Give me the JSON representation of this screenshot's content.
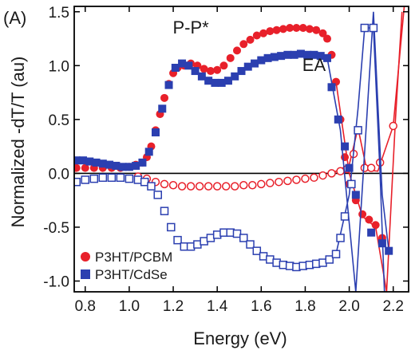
{
  "chart_data": {
    "type": "scatter",
    "panel_label": "(A)",
    "title": "",
    "xlabel": "Energy (eV)",
    "ylabel": "Normalized -dT/T (au)",
    "xlim": [
      0.75,
      2.27
    ],
    "ylim": [
      -1.1,
      1.55
    ],
    "xticks": [
      0.8,
      1.0,
      1.2,
      1.4,
      1.6,
      1.8,
      2.0,
      2.2
    ],
    "xtick_labels": [
      "0.8",
      "1.0",
      "1.2",
      "1.4",
      "1.6",
      "1.8",
      "2.0",
      "2.2"
    ],
    "yticks": [
      -1.0,
      -0.5,
      0.0,
      0.5,
      1.0,
      1.5
    ],
    "ytick_labels": [
      "-1.0",
      "-0.5",
      "0.0",
      "0.5",
      "1.0",
      "1.5"
    ],
    "zero_line": true,
    "grid": false,
    "legend_position": "bottom-left",
    "annotations": [
      {
        "text": "P-P*",
        "x": 1.28,
        "y": 1.3
      },
      {
        "text": "EA",
        "x": 1.84,
        "y": 0.95
      }
    ],
    "colors": {
      "red": "#e8202a",
      "blue": "#2b3fb0"
    },
    "series": [
      {
        "name": "P3HT/PCBM",
        "color": "#e8202a",
        "marker": "circle",
        "filled": true,
        "points": [
          [
            0.76,
            0.05
          ],
          [
            0.8,
            0.05
          ],
          [
            0.84,
            0.05
          ],
          [
            0.88,
            0.05
          ],
          [
            0.92,
            0.05
          ],
          [
            0.96,
            0.05
          ],
          [
            1.0,
            0.06
          ],
          [
            1.03,
            0.08
          ],
          [
            1.06,
            0.1
          ],
          [
            1.08,
            0.15
          ],
          [
            1.1,
            0.25
          ],
          [
            1.12,
            0.4
          ],
          [
            1.14,
            0.55
          ],
          [
            1.16,
            0.7
          ],
          [
            1.18,
            0.83
          ],
          [
            1.2,
            0.93
          ],
          [
            1.22,
            0.98
          ],
          [
            1.25,
            1.0
          ],
          [
            1.28,
            1.02
          ],
          [
            1.31,
            1.0
          ],
          [
            1.34,
            0.97
          ],
          [
            1.37,
            0.95
          ],
          [
            1.4,
            0.96
          ],
          [
            1.43,
            1.0
          ],
          [
            1.46,
            1.07
          ],
          [
            1.49,
            1.14
          ],
          [
            1.52,
            1.2
          ],
          [
            1.55,
            1.24
          ],
          [
            1.58,
            1.28
          ],
          [
            1.61,
            1.3
          ],
          [
            1.64,
            1.32
          ],
          [
            1.67,
            1.33
          ],
          [
            1.7,
            1.34
          ],
          [
            1.73,
            1.35
          ],
          [
            1.76,
            1.35
          ],
          [
            1.79,
            1.35
          ],
          [
            1.82,
            1.34
          ],
          [
            1.85,
            1.33
          ],
          [
            1.88,
            1.3
          ],
          [
            1.9,
            1.25
          ],
          [
            1.92,
            1.1
          ],
          [
            1.94,
            0.85
          ],
          [
            1.96,
            0.5
          ],
          [
            1.98,
            0.15
          ],
          [
            2.0,
            -0.1
          ],
          [
            2.03,
            -0.25
          ],
          [
            2.06,
            -0.38
          ],
          [
            2.09,
            -0.43
          ],
          [
            2.12,
            -0.48
          ],
          [
            2.15,
            -0.6
          ]
        ],
        "curve": [
          [
            1.94,
            0.85
          ],
          [
            2.0,
            0.0
          ],
          [
            2.06,
            -0.4
          ],
          [
            2.12,
            -0.5
          ],
          [
            2.17,
            -1.1
          ],
          [
            2.21,
            0.5
          ],
          [
            2.24,
            1.5
          ]
        ]
      },
      {
        "name": "",
        "color": "#e8202a",
        "marker": "circle",
        "filled": false,
        "points": [
          [
            1.04,
            -0.03
          ],
          [
            1.08,
            -0.05
          ],
          [
            1.12,
            -0.08
          ],
          [
            1.16,
            -0.1
          ],
          [
            1.2,
            -0.11
          ],
          [
            1.24,
            -0.12
          ],
          [
            1.28,
            -0.12
          ],
          [
            1.32,
            -0.12
          ],
          [
            1.36,
            -0.12
          ],
          [
            1.4,
            -0.12
          ],
          [
            1.44,
            -0.12
          ],
          [
            1.48,
            -0.12
          ],
          [
            1.52,
            -0.11
          ],
          [
            1.56,
            -0.11
          ],
          [
            1.6,
            -0.1
          ],
          [
            1.64,
            -0.09
          ],
          [
            1.68,
            -0.08
          ],
          [
            1.72,
            -0.07
          ],
          [
            1.76,
            -0.06
          ],
          [
            1.8,
            -0.05
          ],
          [
            1.84,
            -0.04
          ],
          [
            1.88,
            -0.02
          ],
          [
            1.92,
            0.0
          ],
          [
            1.96,
            0.02
          ],
          [
            1.99,
            0.04
          ],
          [
            2.02,
            0.18
          ],
          [
            2.04,
            0.4
          ],
          [
            2.07,
            0.05
          ],
          [
            2.1,
            0.05
          ],
          [
            2.14,
            0.1
          ],
          [
            2.2,
            0.44
          ]
        ],
        "curve": [
          [
            1.92,
            0.0
          ],
          [
            2.0,
            0.08
          ],
          [
            2.04,
            0.42
          ],
          [
            2.08,
            0.03
          ],
          [
            2.13,
            0.02
          ],
          [
            2.2,
            0.44
          ],
          [
            2.25,
            1.55
          ]
        ]
      },
      {
        "name": "P3HT/CdSe",
        "color": "#2b3fb0",
        "marker": "square",
        "filled": true,
        "points": [
          [
            0.76,
            0.12
          ],
          [
            0.79,
            0.12
          ],
          [
            0.82,
            0.11
          ],
          [
            0.85,
            0.1
          ],
          [
            0.88,
            0.09
          ],
          [
            0.91,
            0.08
          ],
          [
            0.94,
            0.07
          ],
          [
            0.97,
            0.06
          ],
          [
            1.0,
            0.06
          ],
          [
            1.03,
            0.07
          ],
          [
            1.06,
            0.1
          ],
          [
            1.09,
            0.2
          ],
          [
            1.12,
            0.38
          ],
          [
            1.15,
            0.6
          ],
          [
            1.18,
            0.82
          ],
          [
            1.21,
            0.98
          ],
          [
            1.24,
            1.02
          ],
          [
            1.27,
            1.0
          ],
          [
            1.3,
            0.95
          ],
          [
            1.33,
            0.9
          ],
          [
            1.36,
            0.86
          ],
          [
            1.39,
            0.84
          ],
          [
            1.42,
            0.84
          ],
          [
            1.45,
            0.86
          ],
          [
            1.48,
            0.9
          ],
          [
            1.51,
            0.95
          ],
          [
            1.54,
            0.99
          ],
          [
            1.57,
            1.02
          ],
          [
            1.6,
            1.05
          ],
          [
            1.63,
            1.07
          ],
          [
            1.66,
            1.08
          ],
          [
            1.69,
            1.09
          ],
          [
            1.72,
            1.1
          ],
          [
            1.75,
            1.1
          ],
          [
            1.78,
            1.11
          ],
          [
            1.81,
            1.1
          ],
          [
            1.84,
            1.1
          ],
          [
            1.87,
            1.09
          ],
          [
            1.9,
            1.07
          ],
          [
            1.92,
            0.8
          ],
          [
            1.95,
            0.5
          ],
          [
            1.98,
            0.25
          ],
          [
            2.0,
            0.05
          ],
          [
            2.03,
            -0.2
          ],
          [
            2.1,
            -0.55
          ],
          [
            2.15,
            -0.65
          ],
          [
            2.18,
            -0.72
          ]
        ],
        "curve": [
          [
            1.9,
            1.07
          ],
          [
            1.96,
            0.4
          ],
          [
            2.03,
            -1.1
          ],
          [
            2.07,
            0.2
          ],
          [
            2.11,
            1.5
          ],
          [
            2.15,
            -0.2
          ],
          [
            2.18,
            -0.72
          ]
        ]
      },
      {
        "name": "",
        "color": "#2b3fb0",
        "marker": "square",
        "filled": false,
        "points": [
          [
            0.76,
            -0.08
          ],
          [
            0.8,
            -0.06
          ],
          [
            0.84,
            -0.05
          ],
          [
            0.88,
            -0.04
          ],
          [
            0.92,
            -0.04
          ],
          [
            0.96,
            -0.04
          ],
          [
            1.0,
            -0.05
          ],
          [
            1.04,
            -0.06
          ],
          [
            1.07,
            -0.08
          ],
          [
            1.1,
            -0.12
          ],
          [
            1.13,
            -0.2
          ],
          [
            1.16,
            -0.35
          ],
          [
            1.19,
            -0.5
          ],
          [
            1.22,
            -0.62
          ],
          [
            1.25,
            -0.68
          ],
          [
            1.28,
            -0.68
          ],
          [
            1.31,
            -0.66
          ],
          [
            1.34,
            -0.63
          ],
          [
            1.37,
            -0.6
          ],
          [
            1.4,
            -0.57
          ],
          [
            1.43,
            -0.55
          ],
          [
            1.46,
            -0.55
          ],
          [
            1.49,
            -0.56
          ],
          [
            1.52,
            -0.6
          ],
          [
            1.55,
            -0.66
          ],
          [
            1.58,
            -0.72
          ],
          [
            1.61,
            -0.77
          ],
          [
            1.64,
            -0.8
          ],
          [
            1.67,
            -0.83
          ],
          [
            1.7,
            -0.85
          ],
          [
            1.73,
            -0.86
          ],
          [
            1.76,
            -0.87
          ],
          [
            1.79,
            -0.86
          ],
          [
            1.82,
            -0.85
          ],
          [
            1.85,
            -0.84
          ],
          [
            1.88,
            -0.83
          ],
          [
            1.91,
            -0.8
          ],
          [
            1.94,
            -0.75
          ],
          [
            1.96,
            -0.6
          ],
          [
            1.98,
            -0.4
          ],
          [
            2.01,
            -0.1
          ],
          [
            2.04,
            0.4
          ],
          [
            2.07,
            1.35
          ],
          [
            2.11,
            1.35
          ]
        ],
        "curve": [
          [
            1.94,
            -0.75
          ],
          [
            2.0,
            -0.2
          ],
          [
            2.04,
            0.6
          ],
          [
            2.07,
            1.35
          ],
          [
            2.11,
            1.35
          ],
          [
            2.14,
            0.0
          ],
          [
            2.16,
            -1.1
          ]
        ]
      }
    ]
  }
}
